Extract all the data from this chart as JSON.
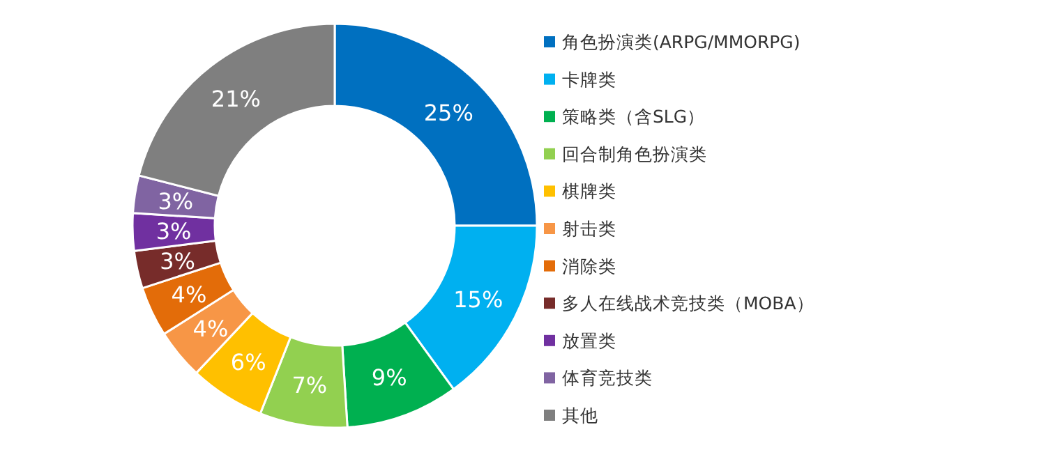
{
  "chart_data": {
    "type": "donut",
    "categories": [
      "角色扮演类(ARPG/MMORPG)",
      "卡牌类",
      "策略类（含SLG）",
      "回合制角色扮演类",
      "棋牌类",
      "射击类",
      "消除类",
      "多人在线战术竞技类（MOBA）",
      "放置类",
      "体育竞技类",
      "其他"
    ],
    "values": [
      25,
      15,
      9,
      7,
      6,
      4,
      4,
      3,
      3,
      3,
      21
    ],
    "colors": [
      "#0070c0",
      "#00b0f0",
      "#00b050",
      "#92d050",
      "#ffc000",
      "#f79646",
      "#e36c09",
      "#772c2a",
      "#7030a0",
      "#8064a2",
      "#7f7f7f"
    ],
    "value_labels": [
      "25%",
      "15%",
      "9%",
      "7%",
      "6%",
      "4%",
      "4%",
      "3%",
      "3%",
      "3%",
      "21%"
    ],
    "legend": "right"
  }
}
